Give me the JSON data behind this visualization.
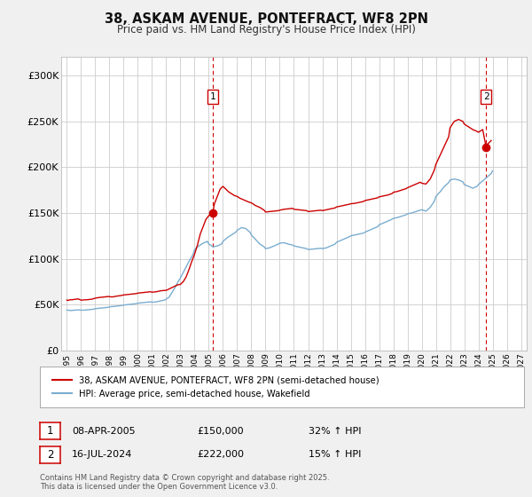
{
  "title": "38, ASKAM AVENUE, PONTEFRACT, WF8 2PN",
  "subtitle": "Price paid vs. HM Land Registry's House Price Index (HPI)",
  "bg_color": "#f0f0f0",
  "plot_bg_color": "#ffffff",
  "red_color": "#cc0000",
  "blue_color": "#7aadcf",
  "grid_color": "#cccccc",
  "ylim": [
    0,
    320000
  ],
  "xlim_start": 1994.6,
  "xlim_end": 2027.4,
  "yticks": [
    0,
    50000,
    100000,
    150000,
    200000,
    250000,
    300000
  ],
  "ytick_labels": [
    "£0",
    "£50K",
    "£100K",
    "£150K",
    "£200K",
    "£250K",
    "£300K"
  ],
  "xtick_years": [
    1995,
    1996,
    1997,
    1998,
    1999,
    2000,
    2001,
    2002,
    2003,
    2004,
    2005,
    2006,
    2007,
    2008,
    2009,
    2010,
    2011,
    2012,
    2013,
    2014,
    2015,
    2016,
    2017,
    2018,
    2019,
    2020,
    2021,
    2022,
    2023,
    2024,
    2025,
    2026,
    2027
  ],
  "marker1_x": 2005.27,
  "marker1_y": 150000,
  "marker2_x": 2024.54,
  "marker2_y": 222000,
  "legend_red": "38, ASKAM AVENUE, PONTEFRACT, WF8 2PN (semi-detached house)",
  "legend_blue": "HPI: Average price, semi-detached house, Wakefield",
  "annotation1_date": "08-APR-2005",
  "annotation1_price": "£150,000",
  "annotation1_hpi": "32% ↑ HPI",
  "annotation2_date": "16-JUL-2024",
  "annotation2_price": "£222,000",
  "annotation2_hpi": "15% ↑ HPI",
  "footer": "Contains HM Land Registry data © Crown copyright and database right 2025.\nThis data is licensed under the Open Government Licence v3.0.",
  "hpi_red_data": [
    [
      1995.0,
      55000
    ],
    [
      1995.1,
      54500
    ],
    [
      1995.2,
      55200
    ],
    [
      1995.4,
      55300
    ],
    [
      1995.6,
      55800
    ],
    [
      1995.8,
      56200
    ],
    [
      1996.0,
      54800
    ],
    [
      1996.2,
      55100
    ],
    [
      1996.5,
      55400
    ],
    [
      1996.8,
      56000
    ],
    [
      1997.0,
      57000
    ],
    [
      1997.3,
      57800
    ],
    [
      1997.6,
      58200
    ],
    [
      1997.9,
      58800
    ],
    [
      1998.2,
      58300
    ],
    [
      1998.5,
      59200
    ],
    [
      1998.8,
      59800
    ],
    [
      1999.0,
      60500
    ],
    [
      1999.3,
      61000
    ],
    [
      1999.6,
      61500
    ],
    [
      1999.9,
      62000
    ],
    [
      2000.0,
      62500
    ],
    [
      2000.3,
      63000
    ],
    [
      2000.6,
      63500
    ],
    [
      2000.9,
      64000
    ],
    [
      2001.0,
      63500
    ],
    [
      2001.3,
      64000
    ],
    [
      2001.6,
      65000
    ],
    [
      2001.9,
      65500
    ],
    [
      2002.0,
      65500
    ],
    [
      2002.2,
      67000
    ],
    [
      2002.4,
      68500
    ],
    [
      2002.6,
      70000
    ],
    [
      2002.8,
      71500
    ],
    [
      2003.0,
      72000
    ],
    [
      2003.2,
      75000
    ],
    [
      2003.4,
      80000
    ],
    [
      2003.6,
      88000
    ],
    [
      2003.8,
      97000
    ],
    [
      2004.0,
      105000
    ],
    [
      2004.2,
      115000
    ],
    [
      2004.4,
      127000
    ],
    [
      2004.6,
      135000
    ],
    [
      2004.8,
      143000
    ],
    [
      2005.0,
      147000
    ],
    [
      2005.27,
      150000
    ],
    [
      2005.4,
      160000
    ],
    [
      2005.6,
      168000
    ],
    [
      2005.8,
      176000
    ],
    [
      2006.0,
      179000
    ],
    [
      2006.2,
      176000
    ],
    [
      2006.4,
      173000
    ],
    [
      2006.6,
      171000
    ],
    [
      2006.8,
      169000
    ],
    [
      2007.0,
      168000
    ],
    [
      2007.2,
      166000
    ],
    [
      2007.5,
      164000
    ],
    [
      2007.8,
      162000
    ],
    [
      2008.0,
      161000
    ],
    [
      2008.3,
      158000
    ],
    [
      2008.6,
      156000
    ],
    [
      2008.9,
      153000
    ],
    [
      2009.0,
      151000
    ],
    [
      2009.3,
      151500
    ],
    [
      2009.6,
      152000
    ],
    [
      2009.9,
      152500
    ],
    [
      2010.0,
      153000
    ],
    [
      2010.3,
      154000
    ],
    [
      2010.6,
      154500
    ],
    [
      2010.9,
      155000
    ],
    [
      2011.0,
      154000
    ],
    [
      2011.3,
      153500
    ],
    [
      2011.6,
      153000
    ],
    [
      2011.9,
      152500
    ],
    [
      2012.0,
      151500
    ],
    [
      2012.3,
      152000
    ],
    [
      2012.6,
      152500
    ],
    [
      2012.9,
      153000
    ],
    [
      2013.0,
      152500
    ],
    [
      2013.3,
      153500
    ],
    [
      2013.6,
      154500
    ],
    [
      2013.9,
      155500
    ],
    [
      2014.0,
      156500
    ],
    [
      2014.3,
      157500
    ],
    [
      2014.6,
      158500
    ],
    [
      2014.9,
      159500
    ],
    [
      2015.0,
      160000
    ],
    [
      2015.3,
      160500
    ],
    [
      2015.6,
      161500
    ],
    [
      2015.9,
      162500
    ],
    [
      2016.0,
      163500
    ],
    [
      2016.3,
      164500
    ],
    [
      2016.6,
      165500
    ],
    [
      2016.9,
      166500
    ],
    [
      2017.0,
      167500
    ],
    [
      2017.3,
      168500
    ],
    [
      2017.6,
      169500
    ],
    [
      2017.9,
      171000
    ],
    [
      2018.0,
      172500
    ],
    [
      2018.3,
      173500
    ],
    [
      2018.6,
      175000
    ],
    [
      2018.9,
      176500
    ],
    [
      2019.0,
      177500
    ],
    [
      2019.3,
      179500
    ],
    [
      2019.6,
      181500
    ],
    [
      2019.9,
      183500
    ],
    [
      2020.0,
      182500
    ],
    [
      2020.3,
      181500
    ],
    [
      2020.6,
      187000
    ],
    [
      2020.9,
      197000
    ],
    [
      2021.0,
      203000
    ],
    [
      2021.3,
      213000
    ],
    [
      2021.6,
      223000
    ],
    [
      2021.9,
      233000
    ],
    [
      2022.0,
      243000
    ],
    [
      2022.3,
      250000
    ],
    [
      2022.6,
      252000
    ],
    [
      2022.9,
      250000
    ],
    [
      2023.0,
      247000
    ],
    [
      2023.3,
      244000
    ],
    [
      2023.6,
      241000
    ],
    [
      2023.9,
      239000
    ],
    [
      2024.0,
      238000
    ],
    [
      2024.3,
      241000
    ],
    [
      2024.54,
      222000
    ],
    [
      2024.7,
      226000
    ],
    [
      2024.9,
      229000
    ]
  ],
  "hpi_blue_data": [
    [
      1995.0,
      44000
    ],
    [
      1995.3,
      43500
    ],
    [
      1995.6,
      44000
    ],
    [
      1995.9,
      44200
    ],
    [
      1996.0,
      43800
    ],
    [
      1996.3,
      44000
    ],
    [
      1996.6,
      44500
    ],
    [
      1996.9,
      45000
    ],
    [
      1997.0,
      45500
    ],
    [
      1997.3,
      46000
    ],
    [
      1997.6,
      46500
    ],
    [
      1997.9,
      47000
    ],
    [
      1998.0,
      47500
    ],
    [
      1998.3,
      48000
    ],
    [
      1998.6,
      48500
    ],
    [
      1998.9,
      49000
    ],
    [
      1999.0,
      49500
    ],
    [
      1999.3,
      50000
    ],
    [
      1999.6,
      50500
    ],
    [
      1999.9,
      51000
    ],
    [
      2000.0,
      51500
    ],
    [
      2000.3,
      52000
    ],
    [
      2000.6,
      52500
    ],
    [
      2000.9,
      53000
    ],
    [
      2001.0,
      52500
    ],
    [
      2001.3,
      53000
    ],
    [
      2001.6,
      54000
    ],
    [
      2001.9,
      55000
    ],
    [
      2002.0,
      56000
    ],
    [
      2002.2,
      58000
    ],
    [
      2002.4,
      63000
    ],
    [
      2002.6,
      68000
    ],
    [
      2002.8,
      74000
    ],
    [
      2003.0,
      79000
    ],
    [
      2003.3,
      88000
    ],
    [
      2003.6,
      97000
    ],
    [
      2003.9,
      105000
    ],
    [
      2004.0,
      110000
    ],
    [
      2004.3,
      114000
    ],
    [
      2004.6,
      117000
    ],
    [
      2004.9,
      119000
    ],
    [
      2005.0,
      116000
    ],
    [
      2005.3,
      113000
    ],
    [
      2005.6,
      114000
    ],
    [
      2005.9,
      116000
    ],
    [
      2006.0,
      119000
    ],
    [
      2006.3,
      123000
    ],
    [
      2006.6,
      126000
    ],
    [
      2006.9,
      129000
    ],
    [
      2007.0,
      131000
    ],
    [
      2007.3,
      134000
    ],
    [
      2007.6,
      133000
    ],
    [
      2007.9,
      129000
    ],
    [
      2008.0,
      126000
    ],
    [
      2008.3,
      121000
    ],
    [
      2008.6,
      116000
    ],
    [
      2008.9,
      113000
    ],
    [
      2009.0,
      111000
    ],
    [
      2009.3,
      112000
    ],
    [
      2009.6,
      114000
    ],
    [
      2009.9,
      116000
    ],
    [
      2010.0,
      117000
    ],
    [
      2010.3,
      117500
    ],
    [
      2010.6,
      116000
    ],
    [
      2010.9,
      115000
    ],
    [
      2011.0,
      114000
    ],
    [
      2011.3,
      113000
    ],
    [
      2011.6,
      112000
    ],
    [
      2011.9,
      111000
    ],
    [
      2012.0,
      110000
    ],
    [
      2012.3,
      110500
    ],
    [
      2012.6,
      111000
    ],
    [
      2012.9,
      111500
    ],
    [
      2013.0,
      111000
    ],
    [
      2013.3,
      112000
    ],
    [
      2013.6,
      114000
    ],
    [
      2013.9,
      116000
    ],
    [
      2014.0,
      118000
    ],
    [
      2014.3,
      120000
    ],
    [
      2014.6,
      122000
    ],
    [
      2014.9,
      124000
    ],
    [
      2015.0,
      125000
    ],
    [
      2015.3,
      126000
    ],
    [
      2015.6,
      127000
    ],
    [
      2015.9,
      128000
    ],
    [
      2016.0,
      129000
    ],
    [
      2016.3,
      131000
    ],
    [
      2016.6,
      133000
    ],
    [
      2016.9,
      135000
    ],
    [
      2017.0,
      137000
    ],
    [
      2017.3,
      139000
    ],
    [
      2017.6,
      141000
    ],
    [
      2017.9,
      143000
    ],
    [
      2018.0,
      144000
    ],
    [
      2018.3,
      145000
    ],
    [
      2018.6,
      146500
    ],
    [
      2018.9,
      148000
    ],
    [
      2019.0,
      149000
    ],
    [
      2019.3,
      150000
    ],
    [
      2019.6,
      151500
    ],
    [
      2019.9,
      153000
    ],
    [
      2020.0,
      153500
    ],
    [
      2020.3,
      152000
    ],
    [
      2020.6,
      156000
    ],
    [
      2020.9,
      163000
    ],
    [
      2021.0,
      168000
    ],
    [
      2021.3,
      173000
    ],
    [
      2021.6,
      179000
    ],
    [
      2021.9,
      183000
    ],
    [
      2022.0,
      186000
    ],
    [
      2022.3,
      187000
    ],
    [
      2022.6,
      186000
    ],
    [
      2022.9,
      184000
    ],
    [
      2023.0,
      181000
    ],
    [
      2023.3,
      179000
    ],
    [
      2023.6,
      177000
    ],
    [
      2023.9,
      179000
    ],
    [
      2024.0,
      181000
    ],
    [
      2024.3,
      185000
    ],
    [
      2024.6,
      189000
    ],
    [
      2024.9,
      193000
    ],
    [
      2025.0,
      196000
    ]
  ]
}
